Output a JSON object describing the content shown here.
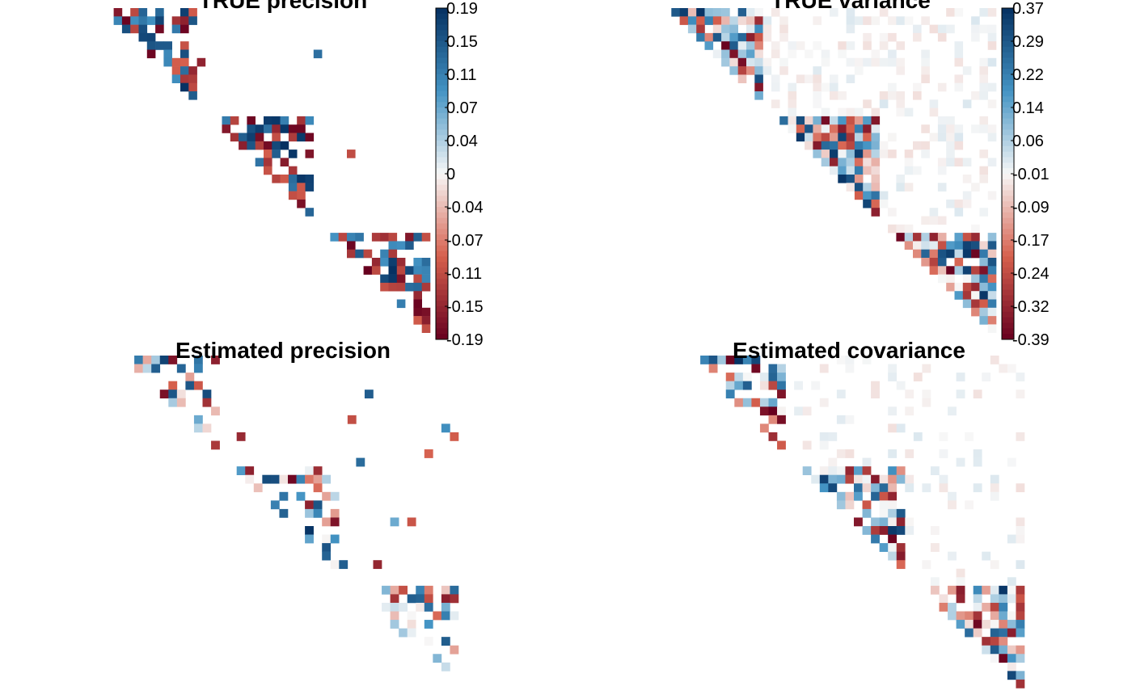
{
  "colors": {
    "low": "#67001f",
    "mid_low": "#d6604d",
    "mid": "#f7f7f7",
    "mid_high": "#4393c3",
    "high": "#053061"
  },
  "chart_data": [
    {
      "type": "heatmap",
      "title": "TRUE precision",
      "matrix": "upper-triangular correlation-style plot, 3 block structure",
      "colorbar": {
        "min": -0.19,
        "max": 0.19,
        "ticks": [
          "0.19",
          "0.15",
          "0.11",
          "0.07",
          "0.04",
          "0",
          "-0.04",
          "-0.07",
          "-0.11",
          "-0.15",
          "-0.19"
        ]
      },
      "grid": false,
      "blocks": [
        [
          0,
          11
        ],
        [
          13,
          25
        ],
        [
          27,
          39
        ]
      ],
      "density": 0.6,
      "background": 0.003
    },
    {
      "type": "heatmap",
      "title": "TRUE variance",
      "matrix": "upper-triangular correlation-style plot, 3 block structure",
      "colorbar": {
        "min": -0.39,
        "max": 0.37,
        "ticks": [
          "0.37",
          "0.29",
          "0.22",
          "0.14",
          "0.06",
          "-0.01",
          "-0.09",
          "-0.17",
          "-0.24",
          "-0.32",
          "-0.39"
        ]
      },
      "grid": false,
      "blocks": [
        [
          0,
          11
        ],
        [
          13,
          25
        ],
        [
          27,
          39
        ]
      ],
      "density": 0.95,
      "background": 0.35
    },
    {
      "type": "heatmap",
      "title": "Estimated precision",
      "matrix": "upper-triangular correlation-style plot, 3 block structure",
      "grid": false,
      "blocks": [
        [
          0,
          11
        ],
        [
          13,
          25
        ],
        [
          27,
          39
        ]
      ],
      "density": 0.45,
      "background": 0.02
    },
    {
      "type": "heatmap",
      "title": "Estimated covariance",
      "matrix": "upper-triangular correlation-style plot, 3 block structure",
      "grid": false,
      "blocks": [
        [
          0,
          11
        ],
        [
          13,
          25
        ],
        [
          27,
          39
        ]
      ],
      "density": 0.75,
      "background": 0.15
    }
  ]
}
